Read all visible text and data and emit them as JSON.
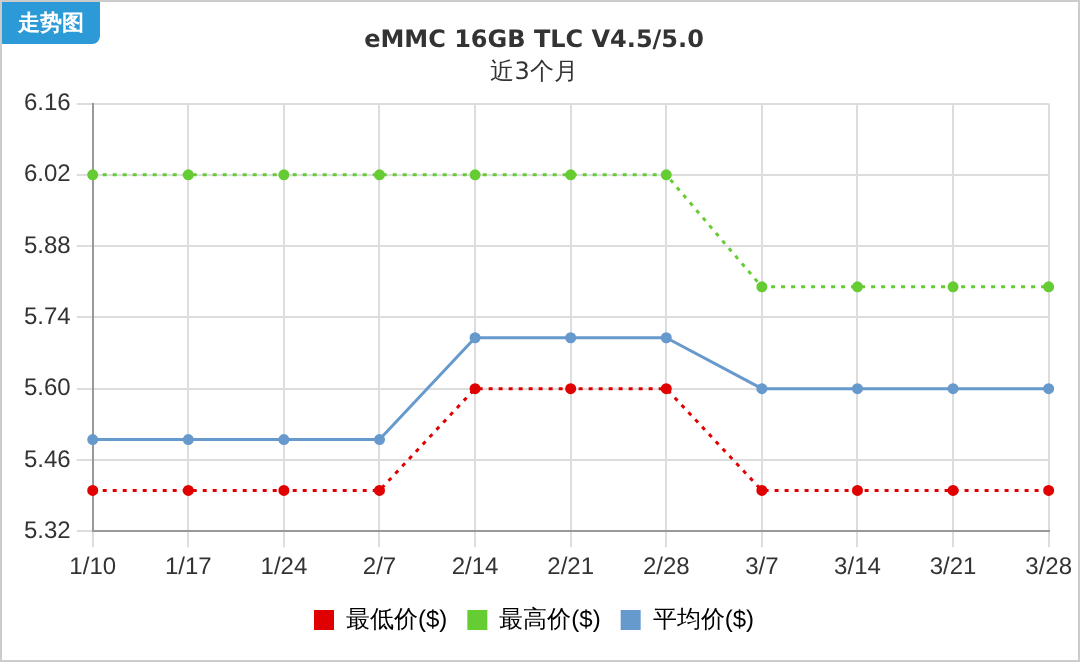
{
  "chart_data": {
    "type": "line",
    "title": "eMMC 16GB TLC V4.5/5.0",
    "subtitle": "近3个月",
    "annotations": [
      "走势图"
    ],
    "categories": [
      "1/10",
      "1/17",
      "1/24",
      "2/7",
      "2/14",
      "2/21",
      "2/28",
      "3/7",
      "3/14",
      "3/21",
      "3/28"
    ],
    "series": [
      {
        "name": "最低价($)",
        "color": "#e00000",
        "line_style": "dotted",
        "values": [
          5.4,
          5.4,
          5.4,
          5.4,
          5.6,
          5.6,
          5.6,
          5.4,
          5.4,
          5.4,
          5.4
        ]
      },
      {
        "name": "最高价($)",
        "color": "#66cc33",
        "line_style": "dotted",
        "values": [
          6.02,
          6.02,
          6.02,
          6.02,
          6.02,
          6.02,
          6.02,
          5.8,
          5.8,
          5.8,
          5.8
        ]
      },
      {
        "name": "平均价($)",
        "color": "#6699cc",
        "line_style": "solid",
        "values": [
          5.5,
          5.5,
          5.5,
          5.5,
          5.7,
          5.7,
          5.7,
          5.6,
          5.6,
          5.6,
          5.6
        ]
      }
    ],
    "ylim": [
      5.32,
      6.16
    ],
    "yticks": [
      5.32,
      5.46,
      {
        "value": 5.6,
        "label": "5.60"
      },
      5.74,
      5.88,
      6.02,
      6.16
    ],
    "grid": true,
    "legend": "bottom",
    "marker": "circle"
  }
}
